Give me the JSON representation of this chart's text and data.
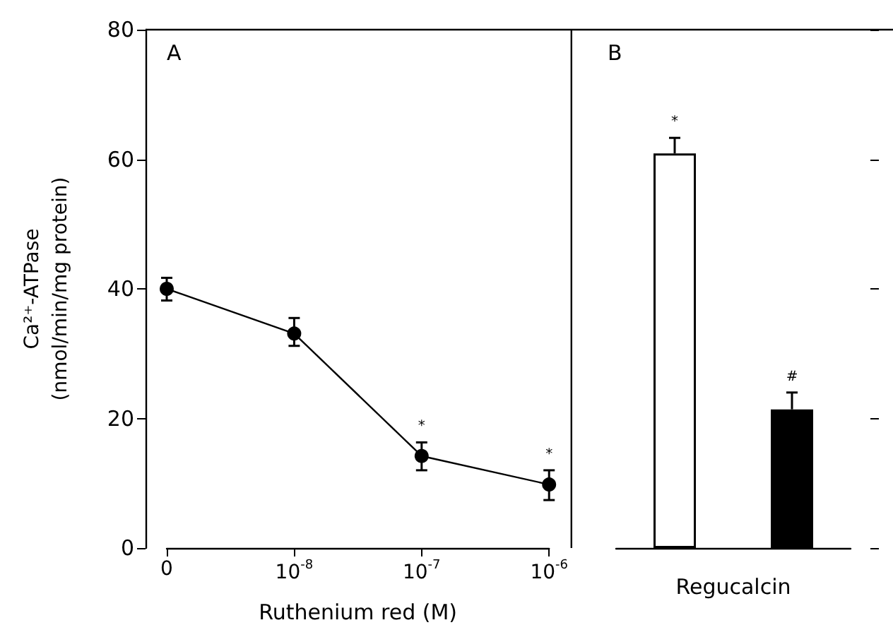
{
  "chart_data": [
    {
      "type": "line",
      "xlabel": "Ruthenium red (M)",
      "ylabel": "Ca²⁺-ATPase\n(nmol/min/mg protein)",
      "categories": [
        "0",
        "10$^{-8}$",
        "10$^{-7}$",
        "10$^{-6}$"
      ],
      "series": [
        {
          "color": "#000000",
          "values": [
            40,
            33.1,
            14.2,
            9.8
          ],
          "errors": [
            [
              38.2,
              41.7
            ],
            [
              31.2,
              35.5
            ],
            [
              12.0,
              16.3
            ],
            [
              7.4,
              12.0
            ]
          ],
          "value_labels": [
            null,
            null,
            "*",
            "*"
          ]
        }
      ],
      "ylim": [
        0,
        80
      ],
      "yticks": [
        0,
        20,
        40,
        60,
        80
      ],
      "marker": "circle",
      "line_style": "solid",
      "annotations": [
        "A"
      ]
    },
    {
      "type": "bar",
      "xlabel": "Regucalcin",
      "categories": [
        null,
        null
      ],
      "series": [
        {
          "colors": [
            "#ffffff",
            "#000000"
          ],
          "values": [
            60.9,
            21.4
          ],
          "errors": [
            [
              60.9,
              63.3
            ],
            [
              21.4,
              24.0
            ]
          ],
          "value_labels": [
            "*",
            "#"
          ]
        }
      ],
      "ylim": [
        0,
        80
      ],
      "yticks": [
        0,
        20,
        40,
        60,
        80
      ],
      "tick_labels": false,
      "annotations": [
        "B"
      ]
    }
  ]
}
